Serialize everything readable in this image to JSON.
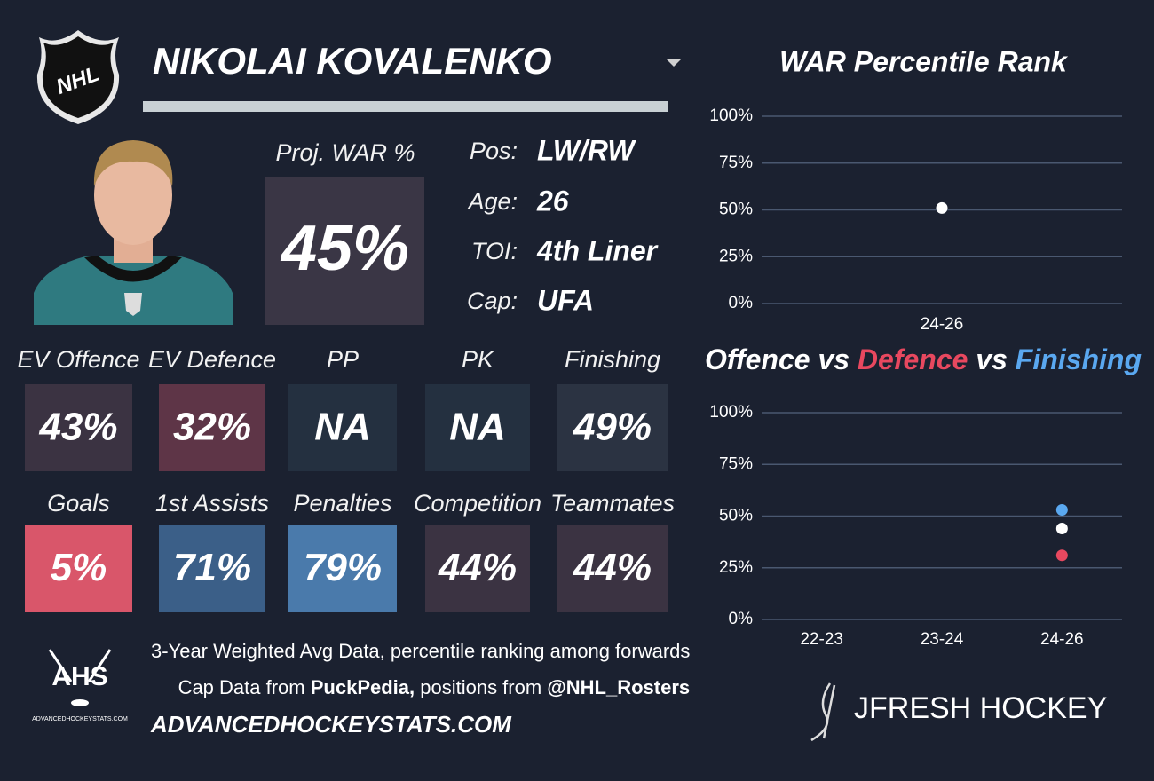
{
  "header": {
    "logo_text": "NHL",
    "player_name": "NIKOLAI KOVALENKO"
  },
  "projection": {
    "label": "Proj. WAR %",
    "value": "45%"
  },
  "bio": [
    {
      "label": "Pos:",
      "value": "LW/RW"
    },
    {
      "label": "Age:",
      "value": "26"
    },
    {
      "label": "TOI:",
      "value": "4th Liner"
    },
    {
      "label": "Cap:",
      "value": "UFA"
    }
  ],
  "tiles": [
    [
      {
        "label": "EV Offence",
        "value": "43%",
        "color": "#3b3342"
      },
      {
        "label": "EV Defence",
        "value": "32%",
        "color": "#5e3547"
      },
      {
        "label": "PP",
        "value": "NA",
        "color": "#243040"
      },
      {
        "label": "PK",
        "value": "NA",
        "color": "#243040"
      },
      {
        "label": "Finishing",
        "value": "49%",
        "color": "#2b3342"
      }
    ],
    [
      {
        "label": "Goals",
        "value": "5%",
        "color": "#d9566a"
      },
      {
        "label": "1st Assists",
        "value": "71%",
        "color": "#3b5f88"
      },
      {
        "label": "Penalties",
        "value": "79%",
        "color": "#4a7aab"
      },
      {
        "label": "Competition",
        "value": "44%",
        "color": "#3b3342"
      },
      {
        "label": "Teammates",
        "value": "44%",
        "color": "#3b3342"
      }
    ]
  ],
  "footer": {
    "logo_text": "AHS",
    "logo_subtext": "ADVANCEDHOCKEYSTATS.COM",
    "line1": "3-Year Weighted Avg Data, percentile ranking among forwards",
    "line2": [
      "Cap Data from ",
      "PuckPedia,",
      " positions from ",
      "@NHL_Rosters"
    ],
    "website": "ADVANCEDHOCKEYSTATS.COM",
    "brand": "JFRESH HOCKEY"
  },
  "chart_data": [
    {
      "type": "scatter",
      "title": "WAR Percentile Rank",
      "categories": [
        "24-26"
      ],
      "values": [
        51
      ],
      "color": "#ffffff",
      "ylim": [
        0,
        100
      ],
      "yticks": [
        {
          "value": 0,
          "label": "0%"
        },
        {
          "value": 25,
          "label": "25%"
        },
        {
          "value": 50,
          "label": "50%"
        },
        {
          "value": 75,
          "label": "75%"
        },
        {
          "value": 100,
          "label": "100%"
        }
      ],
      "grid": true
    },
    {
      "type": "scatter",
      "title_joiner": "vs",
      "categories": [
        "22-23",
        "23-24",
        "24-26"
      ],
      "series": [
        {
          "name": "Offence",
          "color": "#ffffff",
          "values": [
            null,
            null,
            44
          ]
        },
        {
          "name": "Defence",
          "color": "#e8485f",
          "values": [
            null,
            null,
            31
          ]
        },
        {
          "name": "Finishing",
          "color": "#5aa8f0",
          "values": [
            null,
            null,
            53
          ]
        }
      ],
      "ylim": [
        0,
        100
      ],
      "yticks": [
        {
          "value": 0,
          "label": "0%"
        },
        {
          "value": 25,
          "label": "25%"
        },
        {
          "value": 50,
          "label": "50%"
        },
        {
          "value": 75,
          "label": "75%"
        },
        {
          "value": 100,
          "label": "100%"
        }
      ],
      "grid": true
    }
  ]
}
